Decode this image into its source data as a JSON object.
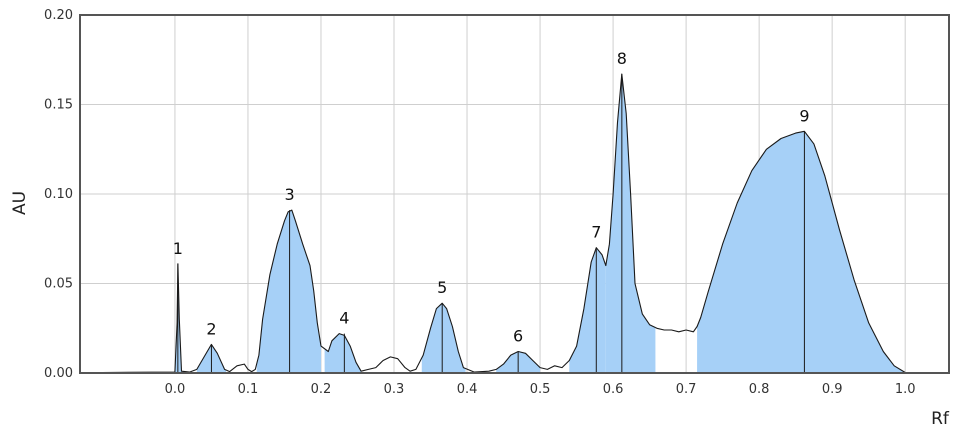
{
  "chart_data": {
    "type": "area",
    "xlabel": "Rf",
    "ylabel": "AU",
    "xlim": [
      -0.13,
      1.06
    ],
    "ylim": [
      0,
      0.2
    ],
    "xticks": [
      "0.0",
      "0.1",
      "0.2",
      "0.3",
      "0.4",
      "0.5",
      "0.6",
      "0.7",
      "0.8",
      "0.9",
      "1.0"
    ],
    "yticks": [
      "0.00",
      "0.05",
      "0.10",
      "0.15",
      "0.20"
    ],
    "grid": true,
    "colors": {
      "fill": "#a6d0f7",
      "line": "#1a1a1a",
      "grid": "#cfcfcf",
      "frame": "#555555"
    },
    "trace": [
      [
        -0.1,
        0.0003
      ],
      [
        0.0,
        0.0005
      ],
      [
        0.003,
        0.028
      ],
      [
        0.004,
        0.061
      ],
      [
        0.006,
        0.03
      ],
      [
        0.009,
        0.001
      ],
      [
        0.02,
        0.0005
      ],
      [
        0.03,
        0.002
      ],
      [
        0.04,
        0.009
      ],
      [
        0.05,
        0.016
      ],
      [
        0.058,
        0.011
      ],
      [
        0.068,
        0.002
      ],
      [
        0.075,
        0.0008
      ],
      [
        0.085,
        0.004
      ],
      [
        0.095,
        0.005
      ],
      [
        0.1,
        0.002
      ],
      [
        0.105,
        0.0008
      ],
      [
        0.11,
        0.002
      ],
      [
        0.115,
        0.01
      ],
      [
        0.12,
        0.03
      ],
      [
        0.13,
        0.055
      ],
      [
        0.14,
        0.072
      ],
      [
        0.15,
        0.085
      ],
      [
        0.155,
        0.09
      ],
      [
        0.16,
        0.091
      ],
      [
        0.165,
        0.085
      ],
      [
        0.175,
        0.072
      ],
      [
        0.185,
        0.06
      ],
      [
        0.19,
        0.046
      ],
      [
        0.195,
        0.028
      ],
      [
        0.2,
        0.015
      ],
      [
        0.21,
        0.012
      ],
      [
        0.215,
        0.018
      ],
      [
        0.225,
        0.022
      ],
      [
        0.232,
        0.021
      ],
      [
        0.24,
        0.015
      ],
      [
        0.248,
        0.006
      ],
      [
        0.255,
        0.001
      ],
      [
        0.265,
        0.002
      ],
      [
        0.275,
        0.003
      ],
      [
        0.285,
        0.007
      ],
      [
        0.295,
        0.009
      ],
      [
        0.305,
        0.008
      ],
      [
        0.315,
        0.003
      ],
      [
        0.322,
        0.001
      ],
      [
        0.33,
        0.002
      ],
      [
        0.34,
        0.01
      ],
      [
        0.35,
        0.025
      ],
      [
        0.358,
        0.036
      ],
      [
        0.366,
        0.039
      ],
      [
        0.372,
        0.036
      ],
      [
        0.38,
        0.026
      ],
      [
        0.388,
        0.012
      ],
      [
        0.395,
        0.003
      ],
      [
        0.41,
        0.0005
      ],
      [
        0.43,
        0.001
      ],
      [
        0.44,
        0.002
      ],
      [
        0.45,
        0.005
      ],
      [
        0.46,
        0.01
      ],
      [
        0.47,
        0.012
      ],
      [
        0.48,
        0.011
      ],
      [
        0.49,
        0.007
      ],
      [
        0.5,
        0.003
      ],
      [
        0.51,
        0.002
      ],
      [
        0.52,
        0.004
      ],
      [
        0.53,
        0.003
      ],
      [
        0.54,
        0.007
      ],
      [
        0.55,
        0.015
      ],
      [
        0.56,
        0.036
      ],
      [
        0.57,
        0.062
      ],
      [
        0.577,
        0.07
      ],
      [
        0.585,
        0.066
      ],
      [
        0.59,
        0.06
      ],
      [
        0.595,
        0.072
      ],
      [
        0.6,
        0.1
      ],
      [
        0.606,
        0.14
      ],
      [
        0.612,
        0.167
      ],
      [
        0.618,
        0.145
      ],
      [
        0.624,
        0.1
      ],
      [
        0.63,
        0.05
      ],
      [
        0.64,
        0.033
      ],
      [
        0.65,
        0.027
      ],
      [
        0.66,
        0.025
      ],
      [
        0.67,
        0.024
      ],
      [
        0.68,
        0.024
      ],
      [
        0.69,
        0.023
      ],
      [
        0.7,
        0.024
      ],
      [
        0.71,
        0.023
      ],
      [
        0.715,
        0.026
      ],
      [
        0.72,
        0.031
      ],
      [
        0.73,
        0.045
      ],
      [
        0.75,
        0.072
      ],
      [
        0.77,
        0.095
      ],
      [
        0.79,
        0.113
      ],
      [
        0.81,
        0.125
      ],
      [
        0.83,
        0.131
      ],
      [
        0.85,
        0.134
      ],
      [
        0.862,
        0.135
      ],
      [
        0.875,
        0.128
      ],
      [
        0.89,
        0.11
      ],
      [
        0.91,
        0.08
      ],
      [
        0.93,
        0.052
      ],
      [
        0.95,
        0.028
      ],
      [
        0.97,
        0.012
      ],
      [
        0.985,
        0.004
      ],
      [
        1.0,
        0.0003
      ],
      [
        1.02,
        0.0003
      ]
    ],
    "peaks": [
      {
        "label": "1",
        "rf": 0.004,
        "au": 0.061,
        "start": -0.002,
        "end": 0.01
      },
      {
        "label": "2",
        "rf": 0.05,
        "au": 0.016,
        "start": 0.03,
        "end": 0.07
      },
      {
        "label": "3",
        "rf": 0.157,
        "au": 0.091,
        "start": 0.112,
        "end": 0.2
      },
      {
        "label": "4",
        "rf": 0.232,
        "au": 0.022,
        "start": 0.205,
        "end": 0.255
      },
      {
        "label": "5",
        "rf": 0.366,
        "au": 0.039,
        "start": 0.338,
        "end": 0.398
      },
      {
        "label": "6",
        "rf": 0.47,
        "au": 0.012,
        "start": 0.44,
        "end": 0.5
      },
      {
        "label": "7",
        "rf": 0.577,
        "au": 0.07,
        "start": 0.54,
        "end": 0.59
      },
      {
        "label": "8",
        "rf": 0.612,
        "au": 0.167,
        "start": 0.59,
        "end": 0.658
      },
      {
        "label": "9",
        "rf": 0.862,
        "au": 0.135,
        "start": 0.715,
        "end": 1.0
      }
    ]
  }
}
